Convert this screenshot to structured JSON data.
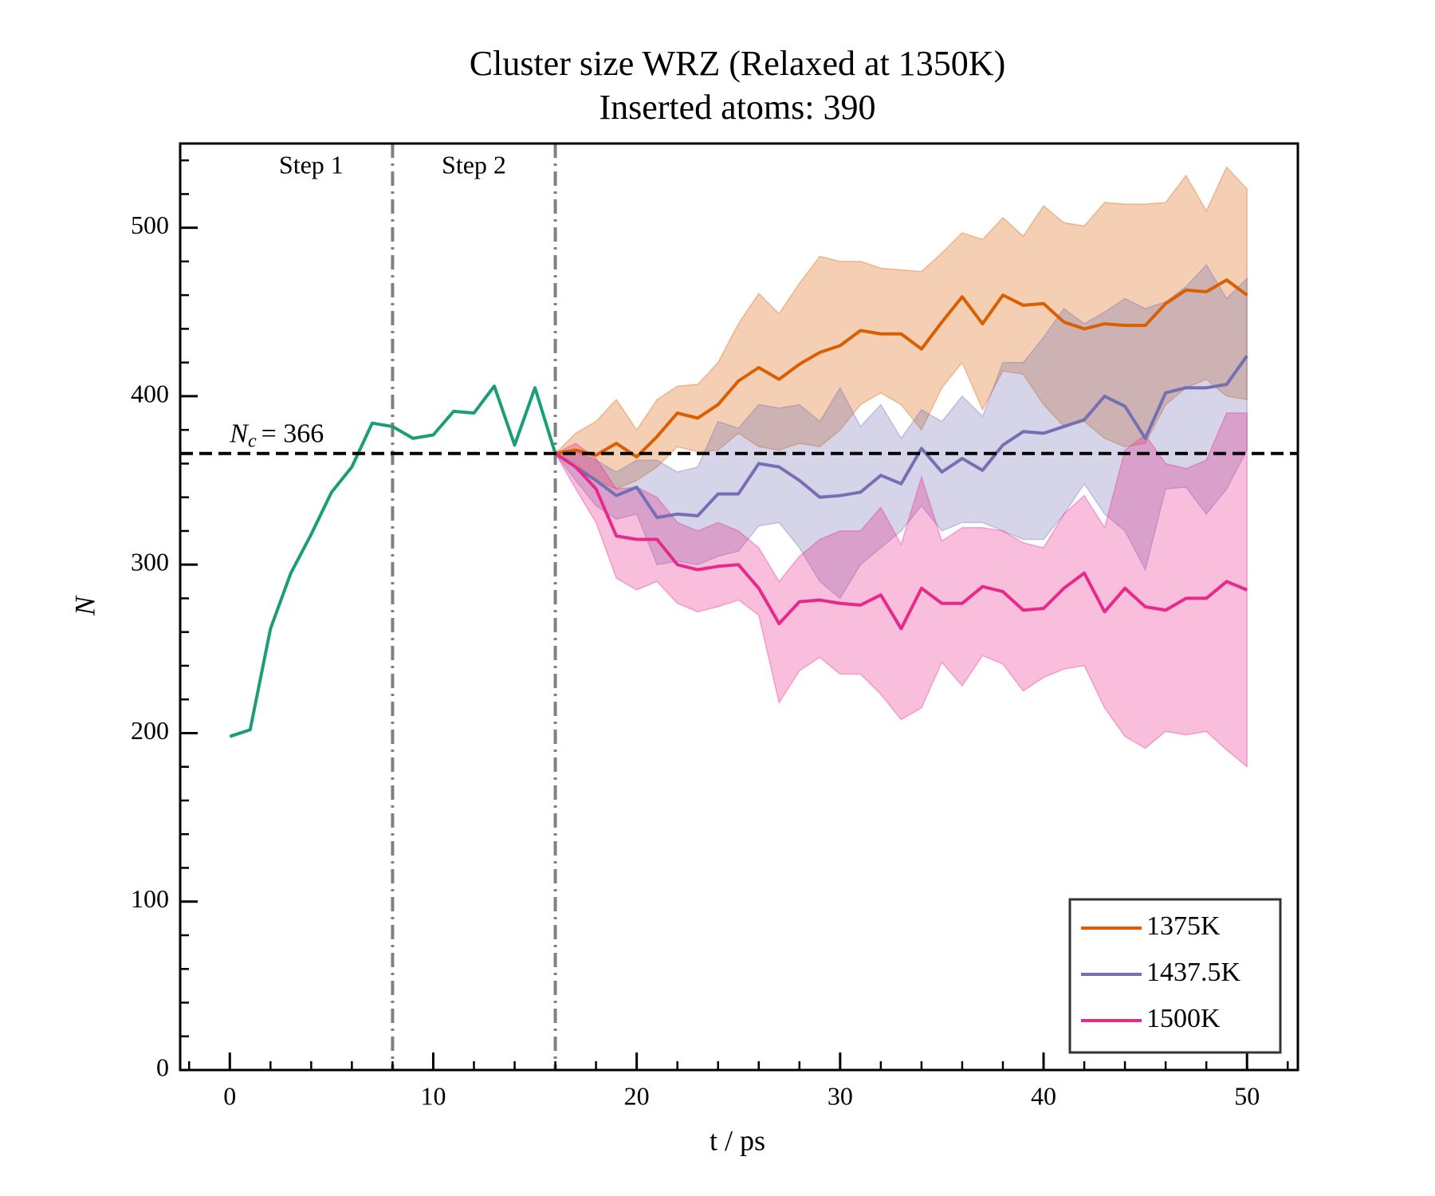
{
  "chart_data": {
    "type": "line",
    "title": "Cluster size WRZ (Relaxed at 1350K)",
    "subtitle": "Inserted atoms: 390",
    "xlabel": "t / ps",
    "ylabel": "N",
    "xlim": [
      -2.44,
      52.5
    ],
    "ylim": [
      0,
      550
    ],
    "xticks": [
      0,
      10,
      20,
      30,
      40,
      50
    ],
    "yticks": [
      0,
      100,
      200,
      300,
      400,
      500
    ],
    "xminorticks": [
      -2,
      2,
      4,
      6,
      8,
      12,
      14,
      16,
      18,
      22,
      24,
      26,
      28,
      32,
      34,
      36,
      38,
      42,
      44,
      46,
      48,
      52
    ],
    "yminorticks": [
      20,
      40,
      60,
      80,
      120,
      140,
      160,
      180,
      220,
      240,
      260,
      280,
      320,
      340,
      360,
      380,
      420,
      440,
      460,
      480,
      520,
      540
    ],
    "legend": "lower right",
    "hline": {
      "value": 366,
      "symbol": "N",
      "subscript": "c",
      "label": "= 366"
    },
    "vlines": [
      8,
      16
    ],
    "step_labels": [
      "Step 1",
      "Step 2"
    ],
    "series": [
      {
        "color": "#1b9e77",
        "x": [
          0,
          1,
          2,
          3,
          4,
          5,
          6,
          7,
          8,
          9,
          10,
          11,
          12,
          13,
          14,
          15,
          16
        ],
        "values": [
          198,
          202,
          262,
          295,
          318,
          343,
          358,
          384,
          382,
          375,
          377,
          391,
          390,
          406,
          371,
          405,
          366
        ]
      },
      {
        "name": "1375K",
        "color": "#d95f02",
        "x": [
          16,
          17,
          18,
          19,
          20,
          21,
          22,
          23,
          24,
          25,
          26,
          27,
          28,
          29,
          30,
          31,
          32,
          33,
          34,
          35,
          36,
          37,
          38,
          39,
          40,
          41,
          42,
          43,
          44,
          45,
          46,
          47,
          48,
          49,
          50
        ],
        "values": [
          366,
          368,
          365,
          372,
          364,
          376,
          390,
          387,
          395,
          409,
          417,
          410,
          419,
          426,
          430,
          439,
          437,
          437,
          428,
          444,
          459,
          443,
          460,
          454,
          455,
          444,
          440,
          443,
          442,
          442,
          455,
          463,
          462,
          469,
          460
        ],
        "upper": [
          366,
          378,
          385,
          398,
          380,
          398,
          406,
          407,
          420,
          443,
          461,
          449,
          467,
          483,
          480,
          480,
          476,
          475,
          474,
          485,
          497,
          493,
          506,
          495,
          513,
          503,
          501,
          515,
          514,
          514,
          515,
          531,
          510,
          536,
          523
        ],
        "lower": [
          366,
          360,
          350,
          345,
          350,
          358,
          370,
          367,
          368,
          378,
          370,
          368,
          372,
          370,
          380,
          395,
          402,
          395,
          380,
          405,
          420,
          392,
          415,
          413,
          395,
          382,
          385,
          375,
          370,
          372,
          395,
          405,
          410,
          400,
          398
        ]
      },
      {
        "name": "1437.5K",
        "color": "#7570b3",
        "x": [
          16,
          17,
          18,
          19,
          20,
          21,
          22,
          23,
          24,
          25,
          26,
          27,
          28,
          29,
          30,
          31,
          32,
          33,
          34,
          35,
          36,
          37,
          38,
          39,
          40,
          41,
          42,
          43,
          44,
          45,
          46,
          47,
          48,
          49,
          50
        ],
        "values": [
          366,
          358,
          350,
          341,
          346,
          328,
          330,
          329,
          342,
          342,
          360,
          358,
          350,
          340,
          341,
          343,
          353,
          348,
          369,
          355,
          363,
          356,
          371,
          379,
          378,
          382,
          386,
          400,
          394,
          375,
          402,
          405,
          405,
          407,
          424
        ],
        "upper": [
          366,
          367,
          362,
          355,
          362,
          362,
          355,
          358,
          385,
          381,
          395,
          393,
          395,
          385,
          405,
          382,
          395,
          375,
          392,
          385,
          400,
          388,
          420,
          420,
          435,
          452,
          443,
          450,
          458,
          452,
          456,
          465,
          478,
          458,
          470
        ],
        "lower": [
          366,
          350,
          335,
          327,
          330,
          300,
          302,
          300,
          305,
          308,
          323,
          325,
          310,
          290,
          280,
          300,
          310,
          320,
          335,
          320,
          325,
          325,
          320,
          315,
          315,
          330,
          348,
          330,
          320,
          297,
          345,
          346,
          330,
          345,
          368
        ]
      },
      {
        "name": "1500K",
        "color": "#e7298a",
        "x": [
          16,
          17,
          18,
          19,
          20,
          21,
          22,
          23,
          24,
          25,
          26,
          27,
          28,
          29,
          30,
          31,
          32,
          33,
          34,
          35,
          36,
          37,
          38,
          39,
          40,
          41,
          42,
          43,
          44,
          45,
          46,
          47,
          48,
          49,
          50
        ],
        "values": [
          366,
          358,
          345,
          317,
          315,
          315,
          300,
          297,
          299,
          300,
          286,
          265,
          278,
          279,
          277,
          276,
          282,
          262,
          286,
          277,
          277,
          287,
          284,
          273,
          274,
          286,
          295,
          272,
          286,
          275,
          273,
          280,
          280,
          290,
          285
        ],
        "upper": [
          366,
          372,
          363,
          345,
          346,
          340,
          325,
          320,
          325,
          320,
          310,
          290,
          305,
          315,
          320,
          320,
          334,
          312,
          352,
          314,
          322,
          322,
          320,
          313,
          310,
          330,
          341,
          322,
          368,
          377,
          360,
          357,
          362,
          390,
          390
        ],
        "lower": [
          366,
          345,
          325,
          292,
          285,
          290,
          277,
          272,
          275,
          279,
          270,
          218,
          237,
          245,
          235,
          235,
          223,
          208,
          215,
          242,
          228,
          246,
          241,
          225,
          233,
          238,
          240,
          215,
          198,
          191,
          201,
          199,
          201,
          190,
          180
        ]
      }
    ]
  }
}
